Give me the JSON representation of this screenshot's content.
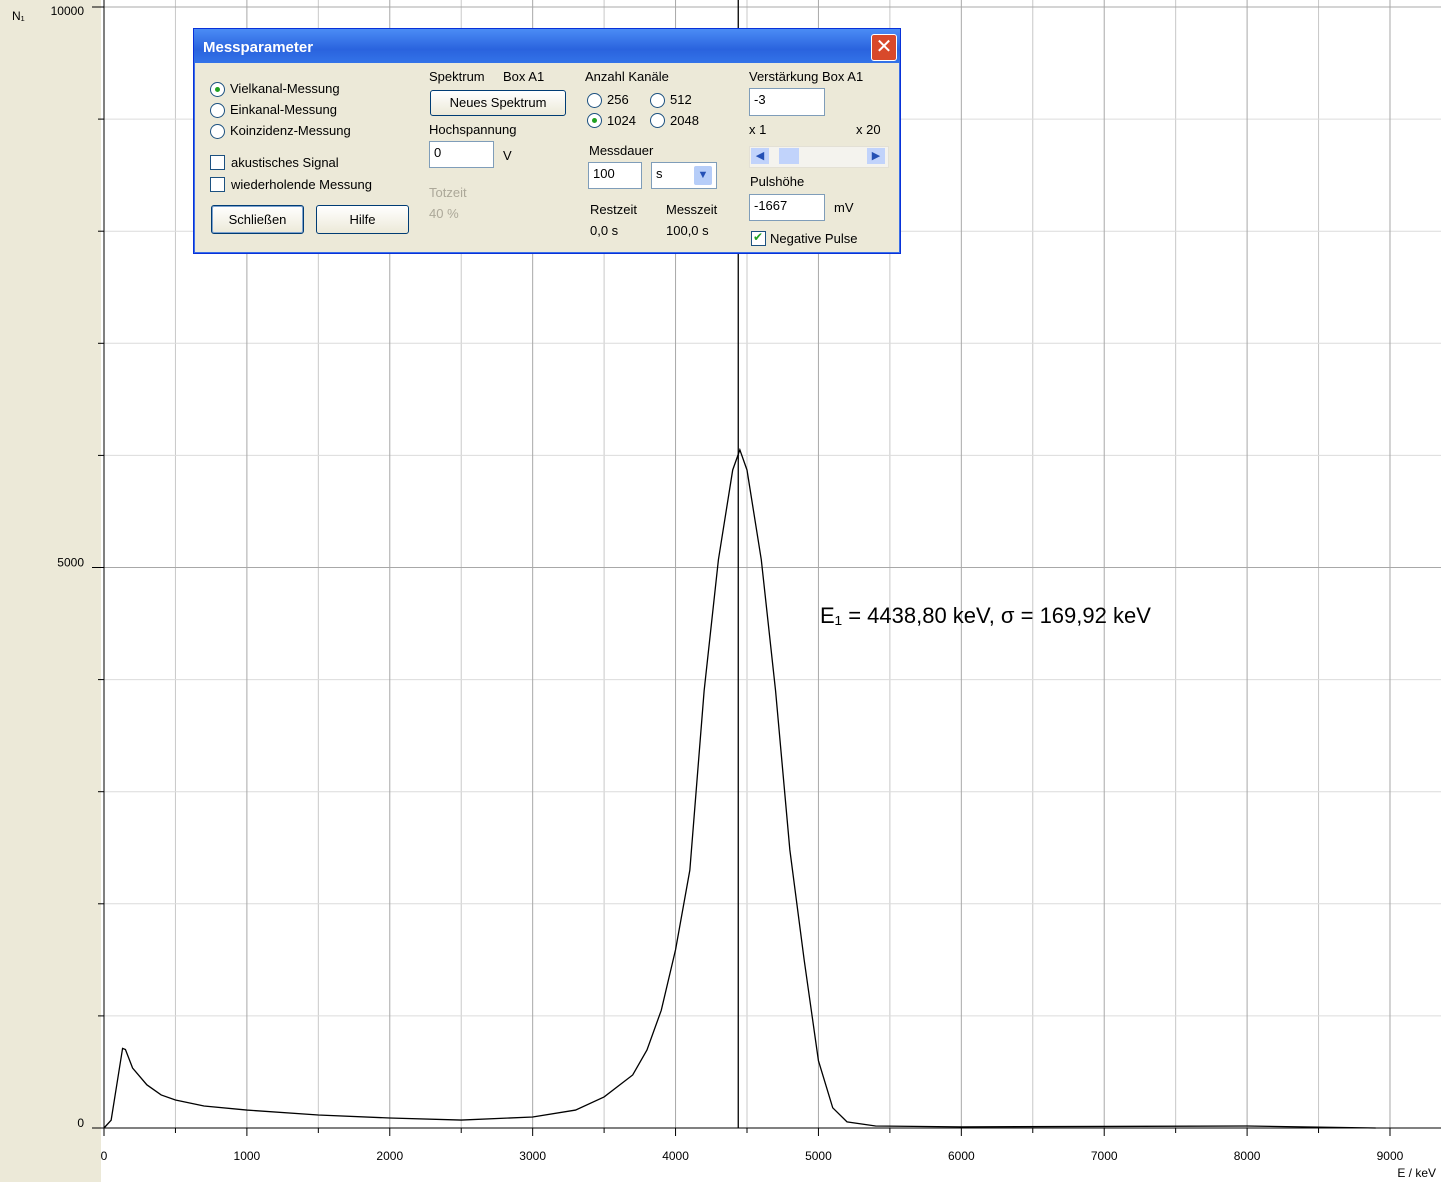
{
  "chart_data": {
    "type": "line",
    "y_label": "N₁",
    "x_label": "E / keV",
    "annotation": "E₁ =  4438,80 keV,   σ = 169,92 keV",
    "marker_x": 4438.8,
    "xlim": [
      0,
      9357
    ],
    "ylim": [
      0,
      10000
    ],
    "xticks": [
      0,
      1000,
      2000,
      3000,
      4000,
      5000,
      6000,
      7000,
      8000,
      9000
    ],
    "x_minor_ticks": [
      500,
      1500,
      2500,
      3500,
      4500,
      5500,
      6500,
      7500,
      8500
    ],
    "yticks": [
      0,
      5000,
      10000
    ],
    "y_minor_ticks": [
      1000,
      2000,
      3000,
      4000,
      6000,
      7000,
      8000,
      9000
    ],
    "grid": true,
    "series": [
      {
        "color": "#000000",
        "x": [
          0,
          50,
          100,
          130,
          150,
          200,
          300,
          400,
          500,
          700,
          1000,
          1500,
          2000,
          2500,
          3000,
          3300,
          3500,
          3700,
          3800,
          3900,
          4000,
          4100,
          4200,
          4300,
          4400,
          4450,
          4500,
          4600,
          4700,
          4800,
          4900,
          5000,
          5100,
          5200,
          5400,
          6000,
          7000,
          8000,
          8900
        ],
        "values": [
          0,
          70,
          470,
          710,
          700,
          535,
          385,
          295,
          250,
          196,
          160,
          116,
          89,
          71,
          98,
          160,
          277,
          473,
          696,
          1050,
          1590,
          2300,
          3900,
          5070,
          5870,
          6050,
          5870,
          5070,
          3900,
          2480,
          1500,
          600,
          180,
          55,
          18,
          10,
          14,
          18,
          0
        ]
      }
    ]
  },
  "dialog": {
    "title": "Messparameter",
    "modes": [
      "Vielkanal-Messung",
      "Einkanal-Messung",
      "Koinzidenz-Messung"
    ],
    "checkboxes": [
      "akustisches Signal",
      "wiederholende Messung"
    ],
    "buttons": [
      "Schließen",
      "Hilfe"
    ],
    "spectrum_label": "Spektrum",
    "spectrum_box": "Box A1",
    "new_spectrum": "Neues Spektrum",
    "voltage_label": "Hochspannung",
    "voltage_value": "0",
    "voltage_unit": "V",
    "dead_time_label": "Totzeit",
    "dead_time_value": "40 %",
    "channels_label": "Anzahl Kanäle",
    "channels": [
      "256",
      "512",
      "1024",
      "2048"
    ],
    "duration_label": "Messdauer",
    "duration_value": "100",
    "duration_unit": "s",
    "remaining_label": "Restzeit",
    "remaining_value": "0,0 s",
    "measure_label": "Messzeit",
    "measure_value": "100,0 s",
    "gain_label": "Verstärkung Box A1",
    "gain_value": "-3",
    "gain_min": "x 1",
    "gain_max": "x 20",
    "pulse_label": "Pulshöhe",
    "pulse_value": "-1667",
    "pulse_unit": "mV",
    "negative_pulse": "Negative Pulse"
  }
}
